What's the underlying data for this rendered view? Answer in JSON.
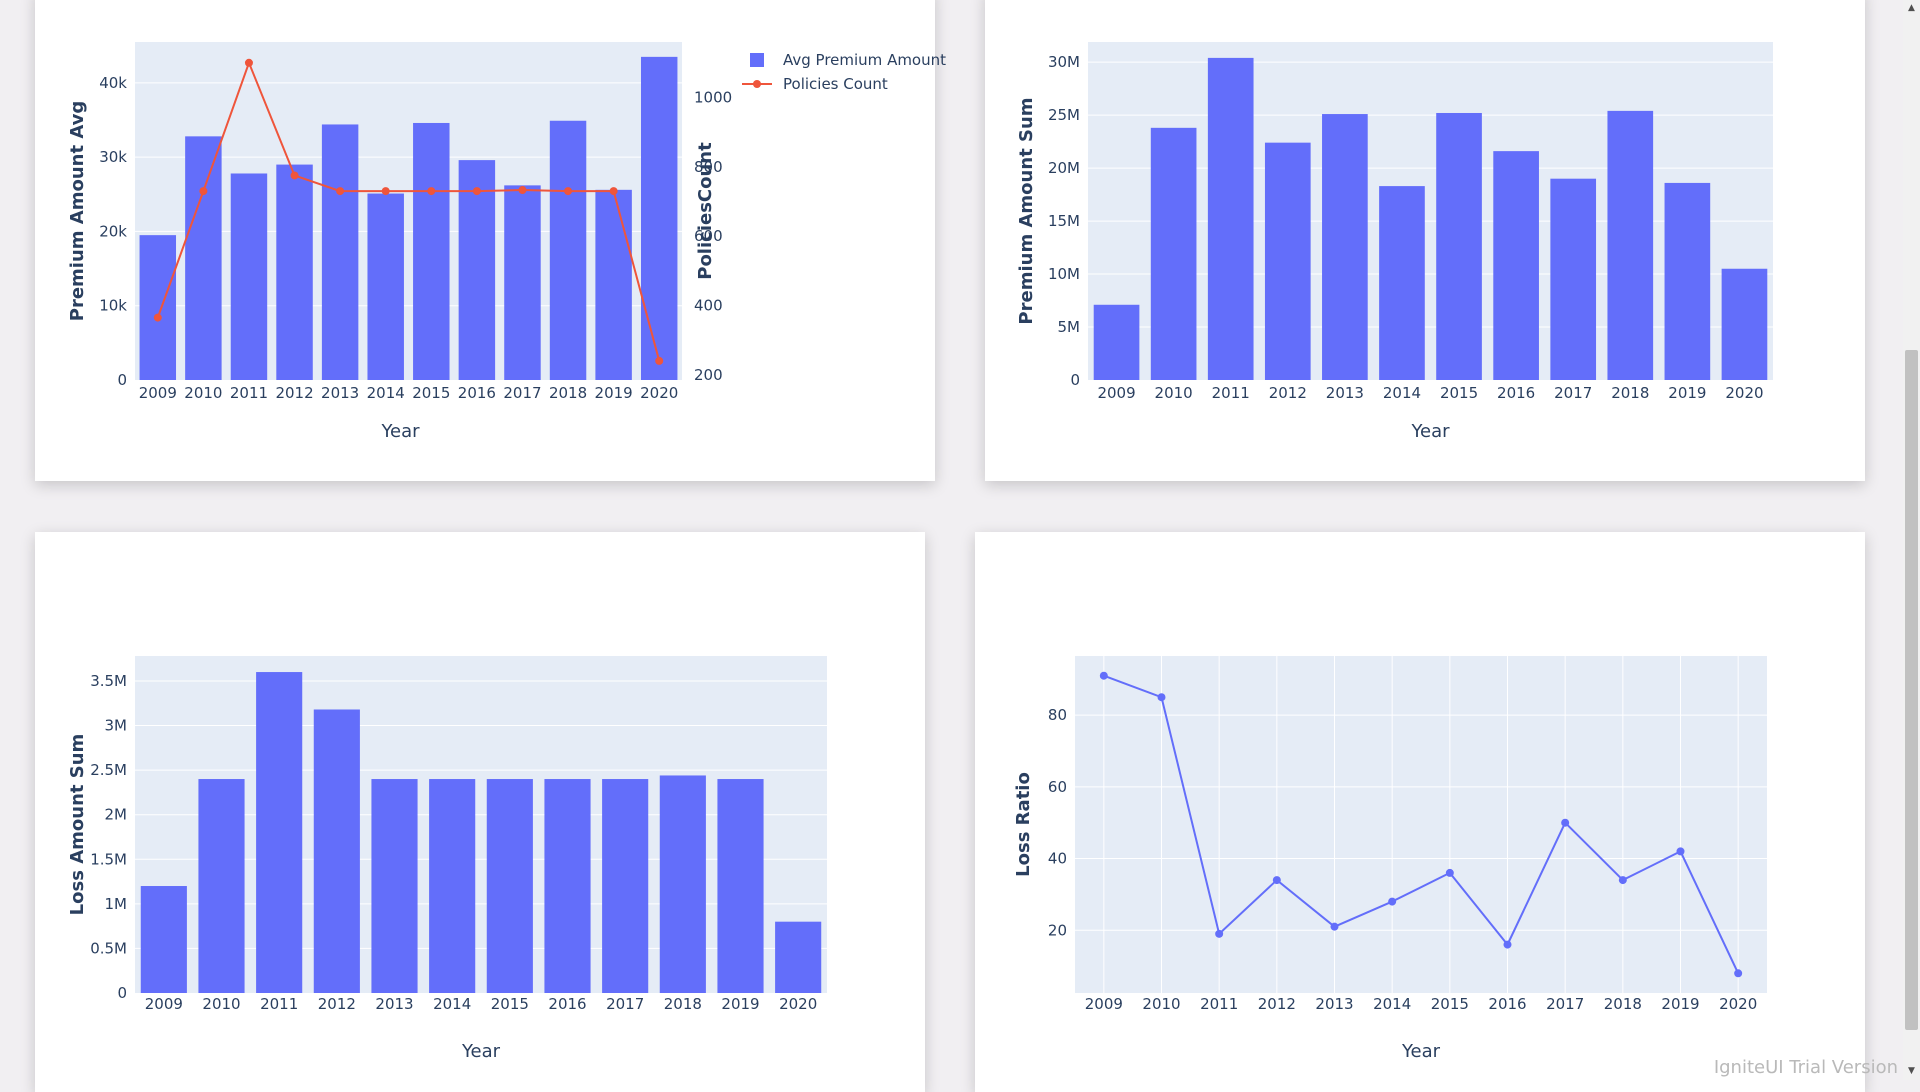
{
  "watermark": "IgniteUI Trial Version",
  "colors": {
    "bar": "#636efa",
    "line_red": "#ef553b",
    "plot_bg": "#e5ecf6",
    "text": "#2a3f5f"
  },
  "chart_data": [
    {
      "id": "premium-avg-policies",
      "type": "bar",
      "categories": [
        "2009",
        "2010",
        "2011",
        "2012",
        "2013",
        "2014",
        "2015",
        "2016",
        "2017",
        "2018",
        "2019",
        "2020"
      ],
      "series": [
        {
          "name": "Avg Premium Amount",
          "type": "bar",
          "axis": "left",
          "values": [
            19500,
            32800,
            27800,
            29000,
            34400,
            25100,
            34600,
            29600,
            26200,
            34900,
            25600,
            43500
          ]
        },
        {
          "name": "Policies Count",
          "type": "line",
          "axis": "right",
          "values": [
            365,
            730,
            1100,
            775,
            730,
            730,
            730,
            730,
            733,
            730,
            730,
            240
          ]
        }
      ],
      "xlabel": "Year",
      "ylabel": "Premium Amount Avg",
      "y2label": "PoliciesCount",
      "ylim": [
        0,
        45500
      ],
      "yticks": [
        0,
        10000,
        20000,
        30000,
        40000
      ],
      "ytick_labels": [
        "0",
        "10k",
        "20k",
        "30k",
        "40k"
      ],
      "y2lim": [
        185,
        1160
      ],
      "y2ticks": [
        200,
        400,
        600,
        800,
        1000
      ],
      "y2tick_labels": [
        "200",
        "400",
        "600",
        "800",
        "1000"
      ],
      "legend": "top-right"
    },
    {
      "id": "premium-sum",
      "type": "bar",
      "categories": [
        "2009",
        "2010",
        "2011",
        "2012",
        "2013",
        "2014",
        "2015",
        "2016",
        "2017",
        "2018",
        "2019",
        "2020"
      ],
      "values": [
        7100000,
        23800000,
        30400000,
        22400000,
        25100000,
        18300000,
        25200000,
        21600000,
        19000000,
        25400000,
        18600000,
        10500000
      ],
      "xlabel": "Year",
      "ylabel": "Premium Amount Sum",
      "ylim": [
        0,
        31900000
      ],
      "yticks": [
        0,
        5000000,
        10000000,
        15000000,
        20000000,
        25000000,
        30000000
      ],
      "ytick_labels": [
        "0",
        "5M",
        "10M",
        "15M",
        "20M",
        "25M",
        "30M"
      ]
    },
    {
      "id": "loss-sum",
      "type": "bar",
      "categories": [
        "2009",
        "2010",
        "2011",
        "2012",
        "2013",
        "2014",
        "2015",
        "2016",
        "2017",
        "2018",
        "2019",
        "2020"
      ],
      "values": [
        1200000,
        2400000,
        3600000,
        3180000,
        2400000,
        2400000,
        2400000,
        2400000,
        2400000,
        2440000,
        2400000,
        800000
      ],
      "xlabel": "Year",
      "ylabel": "Loss Amount Sum",
      "ylim": [
        0,
        3780000
      ],
      "yticks": [
        0,
        500000,
        1000000,
        1500000,
        2000000,
        2500000,
        3000000,
        3500000
      ],
      "ytick_labels": [
        "0",
        "0.5M",
        "1M",
        "1.5M",
        "2M",
        "2.5M",
        "3M",
        "3.5M"
      ]
    },
    {
      "id": "loss-ratio",
      "type": "line",
      "categories": [
        "2009",
        "2010",
        "2011",
        "2012",
        "2013",
        "2014",
        "2015",
        "2016",
        "2017",
        "2018",
        "2019",
        "2020"
      ],
      "values": [
        91,
        85,
        19,
        34,
        21,
        28,
        36,
        16,
        50,
        34,
        42,
        8
      ],
      "xlabel": "Year",
      "ylabel": "Loss Ratio",
      "ylim": [
        2.5,
        96.5
      ],
      "yticks": [
        20,
        40,
        60,
        80
      ],
      "ytick_labels": [
        "20",
        "40",
        "60",
        "80"
      ]
    }
  ]
}
